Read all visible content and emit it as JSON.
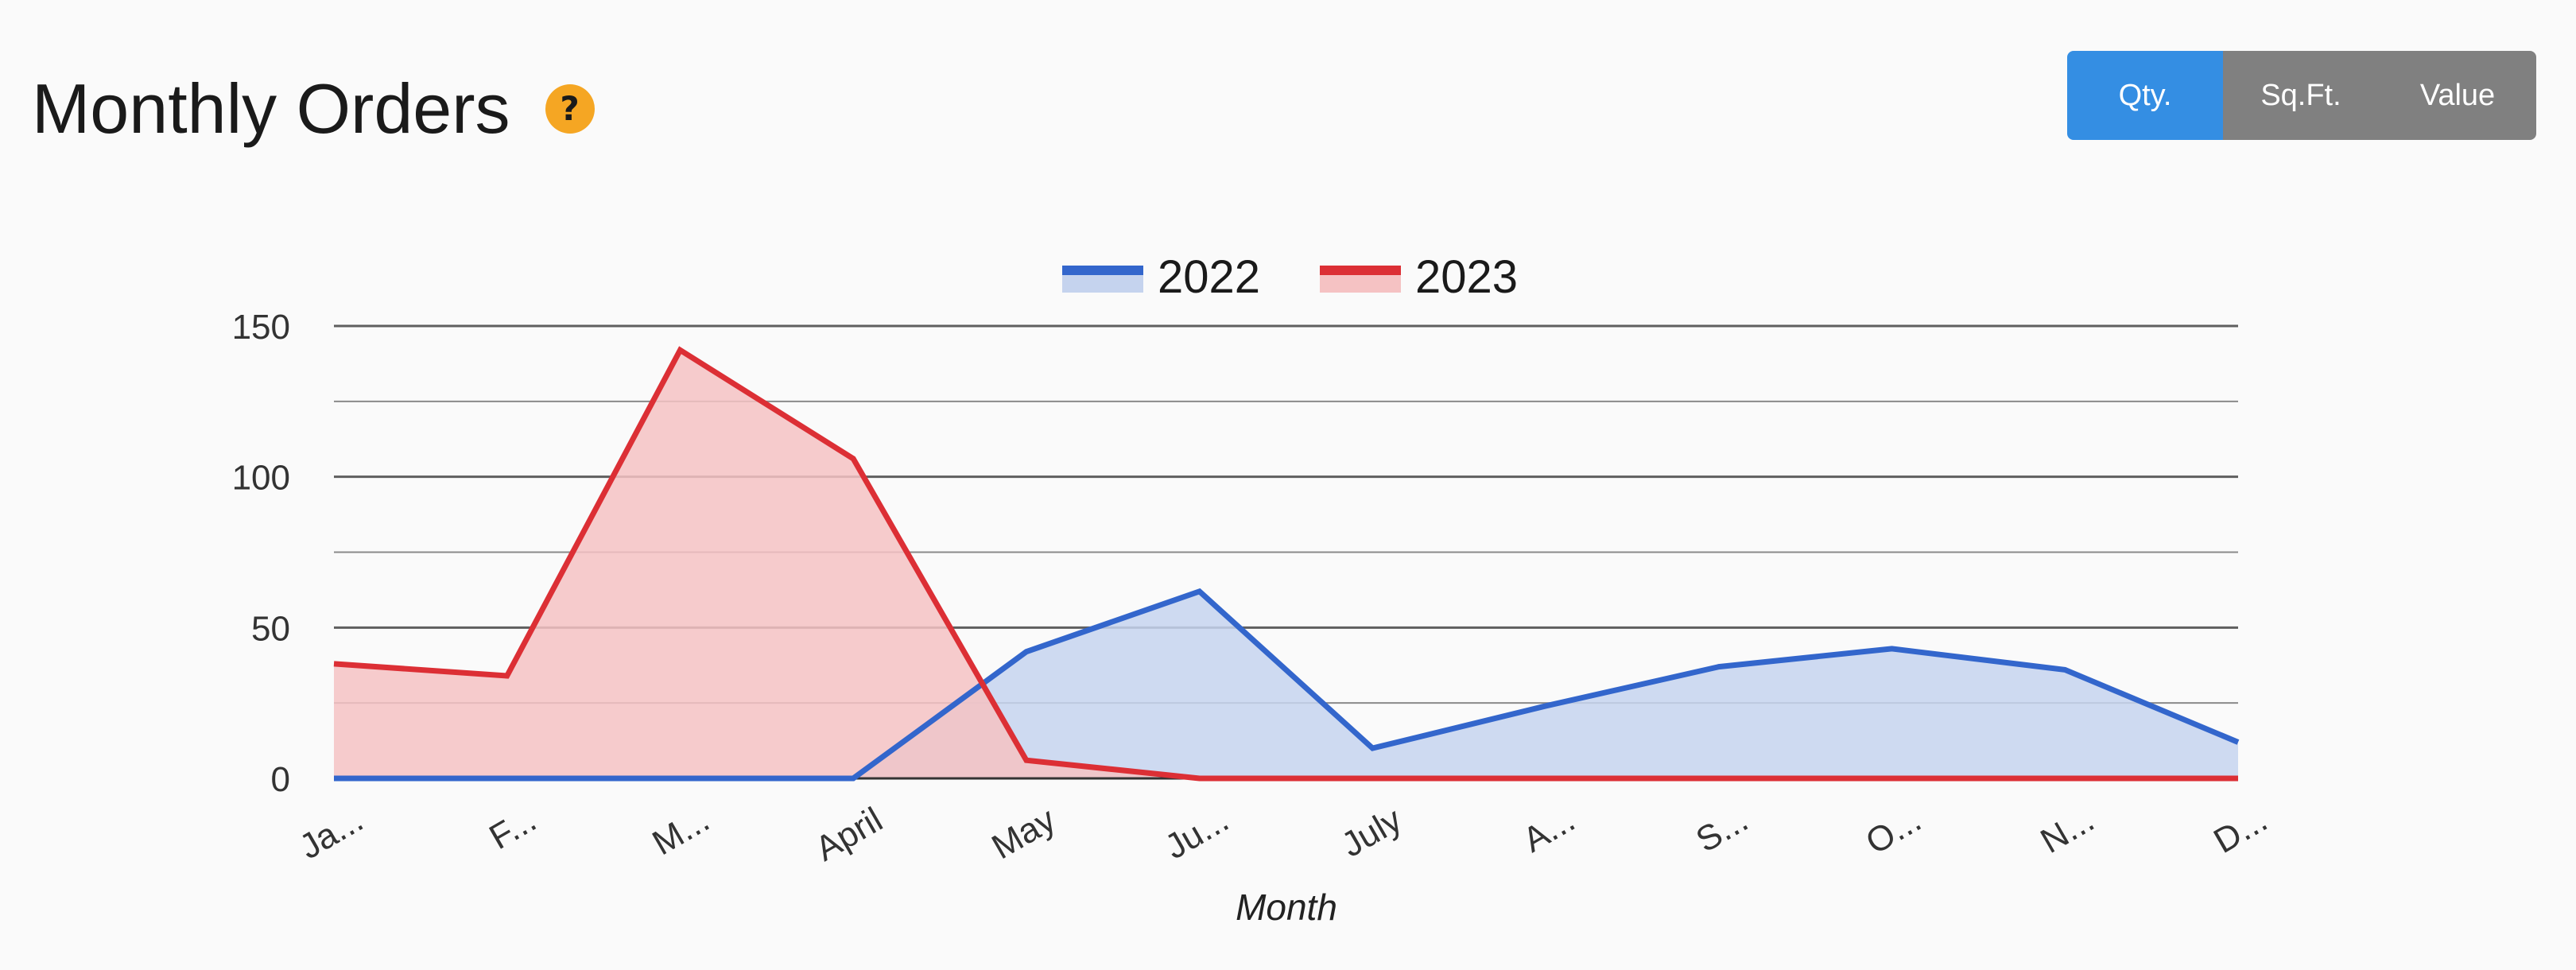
{
  "header": {
    "title": "Monthly Orders",
    "help_icon": "?"
  },
  "toggle": {
    "options": [
      "Qty.",
      "Sq.Ft.",
      "Value"
    ],
    "active": "Qty.",
    "active_color": "#348ee3",
    "inactive_color": "#808080"
  },
  "chart_data": {
    "type": "area",
    "categories": [
      "Ja...",
      "F...",
      "M...",
      "April",
      "May",
      "Ju...",
      "July",
      "A...",
      "S...",
      "O...",
      "N...",
      "D..."
    ],
    "series": [
      {
        "name": "2022",
        "color": "#3366cc",
        "fill": "#c5d3ee",
        "values": [
          0,
          0,
          0,
          0,
          42,
          62,
          10,
          24,
          37,
          43,
          36,
          12
        ]
      },
      {
        "name": "2023",
        "color": "#dc2f35",
        "fill": "#f5c2c3",
        "values": [
          38,
          34,
          142,
          106,
          6,
          0,
          0,
          0,
          0,
          0,
          0,
          0
        ]
      }
    ],
    "yticks": [
      0,
      50,
      100,
      150
    ],
    "ylim": [
      0,
      150
    ],
    "xlabel": "Month",
    "ylabel": "",
    "legend_position": "top",
    "grid": true
  }
}
